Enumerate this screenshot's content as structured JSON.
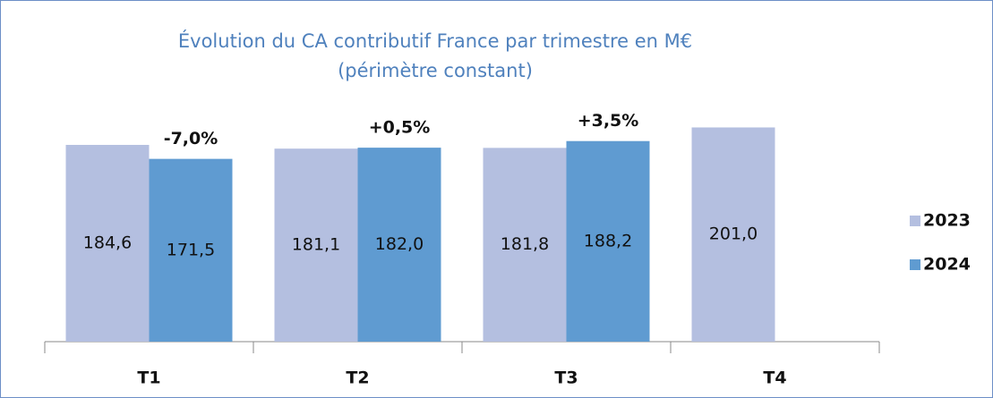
{
  "chart_data": {
    "type": "bar",
    "title": "Évolution du CA contributif France par trimestre en M€",
    "subtitle": "(périmètre constant)",
    "categories": [
      "T1",
      "T2",
      "T3",
      "T4"
    ],
    "series": [
      {
        "name": "2023",
        "color": "#b4bfe0",
        "values": [
          184.6,
          181.1,
          181.8,
          201.0
        ],
        "value_labels": [
          "184,6",
          "181,1",
          "181,8",
          "201,0"
        ]
      },
      {
        "name": "2024",
        "color": "#5f9bd1",
        "values": [
          171.5,
          182.0,
          188.2,
          null
        ],
        "value_labels": [
          "171,5",
          "182,0",
          "188,2",
          null
        ]
      }
    ],
    "annotations": [
      "-7,0%",
      "+0,5%",
      "+3,5%"
    ],
    "ylim": [
      0,
      240
    ]
  }
}
